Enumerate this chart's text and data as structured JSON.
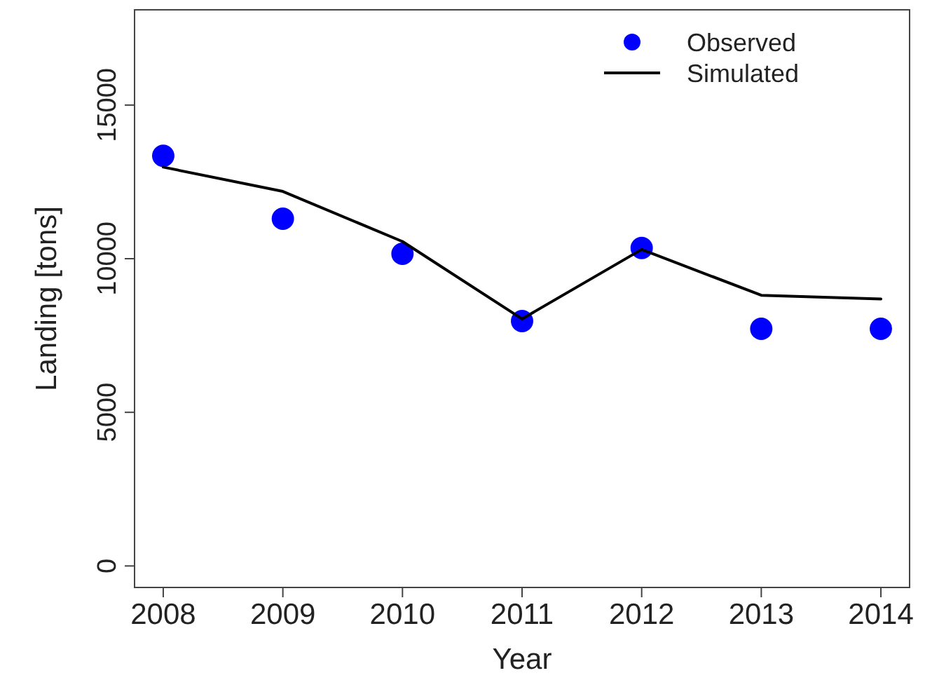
{
  "chart_data": {
    "type": "line",
    "xlabel": "Year",
    "ylabel": "Landing [tons]",
    "x": [
      2008,
      2009,
      2010,
      2011,
      2012,
      2013,
      2014
    ],
    "xlim": [
      2007.76,
      2014.24
    ],
    "xticks": [
      2008,
      2009,
      2010,
      2011,
      2012,
      2013,
      2014
    ],
    "ylim": [
      -700,
      18100
    ],
    "yticks": [
      0,
      5000,
      10000,
      15000
    ],
    "grid": false,
    "legend": "top right",
    "series": [
      {
        "name": "Observed",
        "type": "scatter",
        "marker": "circle",
        "color": "#0000ff",
        "values": [
          13350,
          11300,
          10160,
          7970,
          10350,
          7720,
          7720
        ]
      },
      {
        "name": "Simulated",
        "marker": "none",
        "line_style": "solid",
        "color": "#000000",
        "values": [
          12980,
          12190,
          10560,
          8040,
          10300,
          8810,
          8690
        ]
      }
    ]
  }
}
